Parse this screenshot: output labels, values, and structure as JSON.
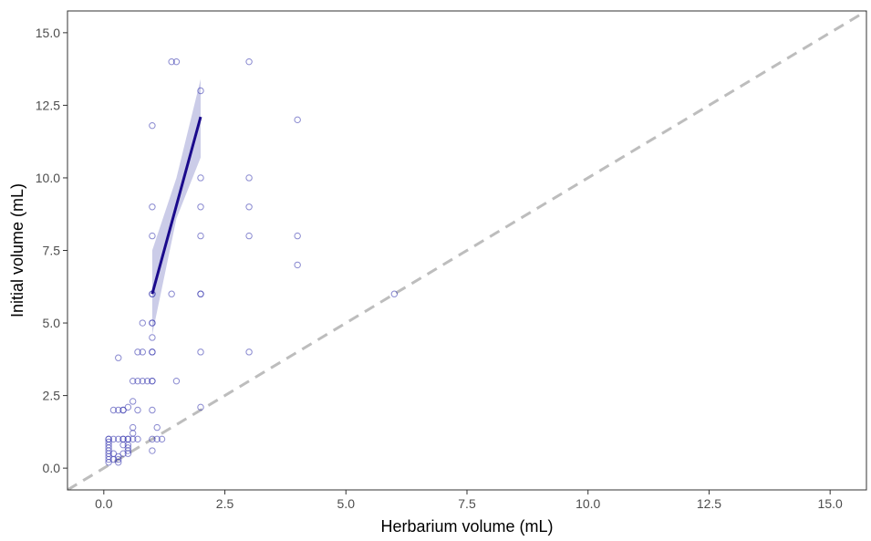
{
  "chart_data": {
    "type": "scatter",
    "title": "",
    "xlabel": "Herbarium volume (mL)",
    "ylabel": "Initial volume (mL)",
    "xlim": [
      -0.75,
      15.75
    ],
    "ylim": [
      -0.75,
      15.75
    ],
    "x_ticks": [
      0.0,
      2.5,
      5.0,
      7.5,
      10.0,
      12.5,
      15.0
    ],
    "x_tick_labels": [
      "0.0",
      "2.5",
      "5.0",
      "7.5",
      "10.0",
      "12.5",
      "15.0"
    ],
    "y_ticks": [
      0.0,
      2.5,
      5.0,
      7.5,
      10.0,
      12.5,
      15.0
    ],
    "y_tick_labels": [
      "0.0",
      "2.5",
      "5.0",
      "7.5",
      "10.0",
      "12.5",
      "15.0"
    ],
    "grid": false,
    "legend": "none",
    "colors": {
      "points": "#3b3bb0",
      "fit_line": "#1a0a8c",
      "ribbon": "#c5c6e6",
      "reference_line": "#bdbdbd",
      "panel_border": "#333333",
      "tick_text": "#4d4d4d"
    },
    "series": [
      {
        "kind": "points",
        "x": [
          0.1,
          0.1,
          0.1,
          0.1,
          0.1,
          0.1,
          0.1,
          0.1,
          0.1,
          0.1,
          0.2,
          0.2,
          0.2,
          0.2,
          0.3,
          0.3,
          0.3,
          0.3,
          0.3,
          0.3,
          0.4,
          0.4,
          0.4,
          0.4,
          0.4,
          0.4,
          0.5,
          0.5,
          0.5,
          0.5,
          0.5,
          0.5,
          0.5,
          0.6,
          0.6,
          0.6,
          0.6,
          0.6,
          0.7,
          0.7,
          0.7,
          0.7,
          0.8,
          0.8,
          0.8,
          0.9,
          1.0,
          1.0,
          1.0,
          1.0,
          1.0,
          1.0,
          1.0,
          1.0,
          1.0,
          1.0,
          1.0,
          1.0,
          1.0,
          1.0,
          1.0,
          1.1,
          1.1,
          1.2,
          1.4,
          1.4,
          1.5,
          1.5,
          2.0,
          2.0,
          2.0,
          2.0,
          2.0,
          2.0,
          2.0,
          2.0,
          3.0,
          3.0,
          3.0,
          3.0,
          3.0,
          4.0,
          4.0,
          4.0,
          6.0
        ],
        "y": [
          0.2,
          0.3,
          0.4,
          0.5,
          0.6,
          0.7,
          0.8,
          0.9,
          1.0,
          1.0,
          0.3,
          0.5,
          1.0,
          2.0,
          0.2,
          0.3,
          0.4,
          1.0,
          2.0,
          3.8,
          0.5,
          0.8,
          1.0,
          2.0,
          2.0,
          1.0,
          0.5,
          0.6,
          0.7,
          0.8,
          1.0,
          2.1,
          1.0,
          1.0,
          1.2,
          1.4,
          2.3,
          3.0,
          2.0,
          4.0,
          3.0,
          1.0,
          3.0,
          4.0,
          5.0,
          3.0,
          0.6,
          1.0,
          2.0,
          3.0,
          4.0,
          4.5,
          5.0,
          6.0,
          8.0,
          9.0,
          11.8,
          6.0,
          5.0,
          4.0,
          3.0,
          1.0,
          1.4,
          1.0,
          6.0,
          14.0,
          14.0,
          3.0,
          2.1,
          4.0,
          6.0,
          8.0,
          9.0,
          10.0,
          13.0,
          6.0,
          4.0,
          8.0,
          9.0,
          10.0,
          14.0,
          7.0,
          8.0,
          12.0,
          6.0
        ]
      },
      {
        "kind": "fit_line",
        "x": [
          1.0,
          2.0
        ],
        "y": [
          6.0,
          12.1
        ]
      },
      {
        "kind": "confidence_band",
        "x": [
          1.0,
          1.5,
          2.0
        ],
        "lower": [
          4.6,
          8.6,
          10.7
        ],
        "upper": [
          7.5,
          10.0,
          13.4
        ]
      },
      {
        "kind": "reference_line",
        "style": "dashed",
        "x": [
          -0.75,
          15.75
        ],
        "y": [
          -0.75,
          15.75
        ]
      }
    ]
  }
}
